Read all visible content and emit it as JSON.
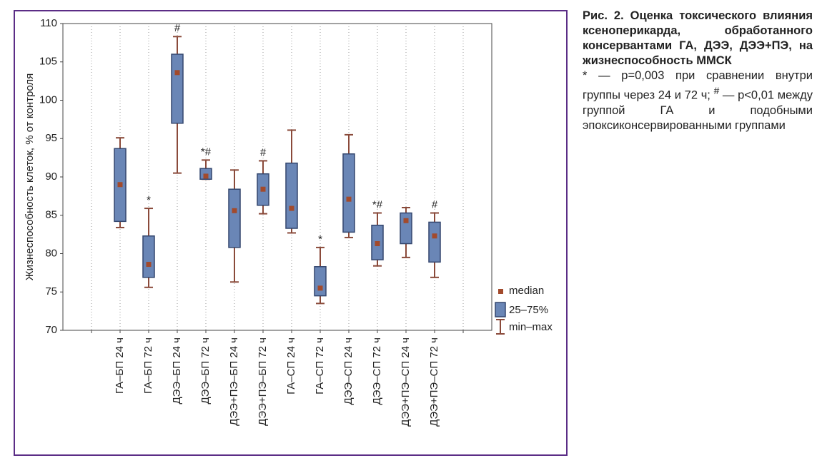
{
  "chart_data": {
    "type": "box",
    "y_label": "Жизнеспособность клеток, % от контроля",
    "categories": [
      null,
      "ГА–БП 24 ч",
      "ГА–БП 72 ч",
      "ДЭЭ–БП 24 ч",
      "ДЭЭ–БП 72 ч",
      "ДЭЭ+ПЭ–БП 24 ч",
      "ДЭЭ+ПЭ–БП 72 ч",
      "ГА–СП 24 ч",
      "ГА–СП 72 ч",
      "ДЭЭ–СП 24 ч",
      "ДЭЭ–СП 72 ч",
      "ДЭЭ+ПЭ–СП 24 ч",
      "ДЭЭ+ПЭ–СП 72 ч",
      null
    ],
    "max": [
      null,
      95.1,
      85.9,
      108.3,
      92.2,
      90.9,
      92.1,
      96.1,
      80.8,
      95.5,
      85.3,
      86.0,
      85.3,
      null
    ],
    "q3": [
      null,
      93.7,
      82.3,
      106.0,
      91.1,
      88.4,
      90.4,
      91.8,
      78.3,
      93.0,
      83.7,
      85.3,
      84.1,
      null
    ],
    "median": [
      null,
      89.0,
      78.6,
      103.6,
      90.1,
      85.6,
      88.4,
      85.9,
      75.5,
      87.1,
      81.3,
      84.3,
      82.3,
      null
    ],
    "q1": [
      null,
      84.2,
      76.9,
      97.0,
      89.7,
      80.8,
      86.3,
      83.3,
      74.5,
      82.8,
      79.2,
      81.3,
      78.9,
      null
    ],
    "min": [
      null,
      83.4,
      75.6,
      90.5,
      89.7,
      76.3,
      85.2,
      82.7,
      73.5,
      82.1,
      78.4,
      79.5,
      76.9,
      null
    ],
    "annotations": [
      null,
      null,
      "*",
      "#",
      "*#",
      null,
      "#",
      null,
      "*",
      null,
      "*#",
      null,
      "#",
      null
    ],
    "ylim": [
      70,
      110
    ],
    "yticks": [
      70,
      75,
      80,
      85,
      90,
      95,
      100,
      105,
      110
    ],
    "grid": "x",
    "box_color": "#6a86b6",
    "box_edge": "#34476e",
    "median_color": "#a24a2c",
    "whisker_color": "#8a4a3a",
    "legend": {
      "position": "right-bottom",
      "median": "median",
      "box": "25–75%",
      "whisker": "min–max"
    },
    "caption": {
      "title": "Рис. 2. Оценка токсического влияния ксеноперикарда, обработанного консервантами ГА, ДЭЭ, ДЭЭ+ПЭ, на жизнеспособность ММСК",
      "note": [
        "* — p=0,003 при сравнении внутри группы через 24 и 72 ч; ",
        "#",
        " — p<0,01 между группой ГА и подобными эпоксиконсервированными группами"
      ]
    }
  }
}
